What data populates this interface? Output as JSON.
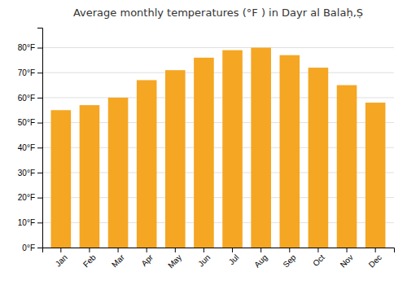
{
  "chart_data": {
    "type": "bar",
    "title": "Average monthly temperatures (°F ) in Dayr al Balaḥ,Ṣ",
    "categories": [
      "Jan",
      "Feb",
      "Mar",
      "Apr",
      "May",
      "Jun",
      "Jul",
      "Aug",
      "Sep",
      "Oct",
      "Nov",
      "Dec"
    ],
    "values": [
      55,
      57,
      60,
      67,
      71,
      76,
      79,
      80,
      77,
      72,
      65,
      58
    ],
    "color": "#F5A623",
    "ylim": [
      0,
      88
    ],
    "yticks": [
      {
        "value": 0,
        "label": "0°F"
      },
      {
        "value": 10,
        "label": "10°F"
      },
      {
        "value": 20,
        "label": "20°F"
      },
      {
        "value": 30,
        "label": "30°F"
      },
      {
        "value": 40,
        "label": "40°F"
      },
      {
        "value": 50,
        "label": "50°F"
      },
      {
        "value": 60,
        "label": "60°F"
      },
      {
        "value": 70,
        "label": "70°F"
      },
      {
        "value": 80,
        "label": "80°F"
      }
    ],
    "grid": true
  }
}
